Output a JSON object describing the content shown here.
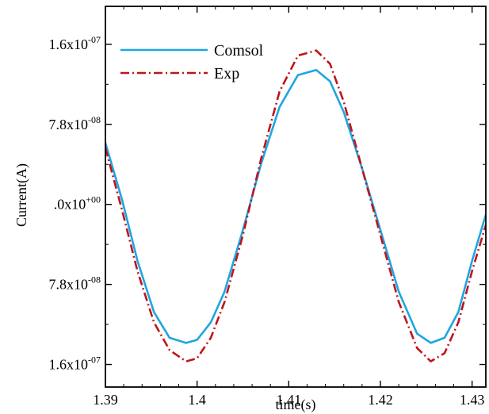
{
  "chart_data": {
    "type": "line",
    "xlabel": "time(s)",
    "ylabel": "Current(A)",
    "xlim": [
      1.39,
      1.4315
    ],
    "ylim": [
      -1.78e-07,
      1.93e-07
    ],
    "x_ticks": [
      {
        "value": 1.39,
        "label": "1.39"
      },
      {
        "value": 1.4,
        "label": "1.4"
      },
      {
        "value": 1.41,
        "label": "1.41"
      },
      {
        "value": 1.42,
        "label": "1.42"
      },
      {
        "value": 1.43,
        "label": "1.43"
      }
    ],
    "y_ticks": [
      {
        "value": 1.56e-07,
        "mantissa": "1.6x10",
        "exponent": "-07"
      },
      {
        "value": 7.8e-08,
        "mantissa": "7.8x10",
        "exponent": "-08"
      },
      {
        "value": 0,
        "mantissa": ".0x10",
        "exponent": "+00"
      },
      {
        "value": -7.8e-08,
        "mantissa": "7.8x10",
        "exponent": "-08"
      },
      {
        "value": -1.56e-07,
        "mantissa": "1.6x10",
        "exponent": "-07"
      }
    ],
    "legend": "top-left",
    "grid": false,
    "series": [
      {
        "name": "Comsol",
        "color": "#1ea6e0",
        "style": "solid",
        "x": [
          1.39,
          1.3918,
          1.3935,
          1.3953,
          1.397,
          1.3988,
          1.4,
          1.4015,
          1.403,
          1.405,
          1.407,
          1.409,
          1.411,
          1.413,
          1.4145,
          1.416,
          1.418,
          1.42,
          1.422,
          1.424,
          1.4255,
          1.427,
          1.4285,
          1.43,
          1.4315
        ],
        "y": [
          6e-08,
          5e-09,
          -5.5e-08,
          -1.05e-07,
          -1.3e-07,
          -1.35e-07,
          -1.32e-07,
          -1.15e-07,
          -8.5e-08,
          -2.5e-08,
          4e-08,
          9.5e-08,
          1.26e-07,
          1.31e-07,
          1.2e-07,
          9e-08,
          3.5e-08,
          -2.5e-08,
          -8.5e-08,
          -1.26e-07,
          -1.35e-07,
          -1.3e-07,
          -1.05e-07,
          -5.5e-08,
          -1e-08
        ]
      },
      {
        "name": "Exp",
        "color": "#c0141c",
        "style": "dashdot",
        "x": [
          1.39,
          1.3918,
          1.3935,
          1.3953,
          1.397,
          1.3988,
          1.4,
          1.4015,
          1.403,
          1.405,
          1.407,
          1.409,
          1.411,
          1.413,
          1.4145,
          1.416,
          1.418,
          1.42,
          1.422,
          1.424,
          1.4255,
          1.427,
          1.4285,
          1.43,
          1.4315
        ],
        "y": [
          5.5e-08,
          -5e-09,
          -6.5e-08,
          -1.15e-07,
          -1.42e-07,
          -1.53e-07,
          -1.5e-07,
          -1.3e-07,
          -9.5e-08,
          -3e-08,
          4.5e-08,
          1.1e-07,
          1.45e-07,
          1.5e-07,
          1.37e-07,
          1e-07,
          3.5e-08,
          -3e-08,
          -9.5e-08,
          -1.4e-07,
          -1.53e-07,
          -1.45e-07,
          -1.15e-07,
          -6.5e-08,
          -2e-08
        ]
      }
    ]
  }
}
